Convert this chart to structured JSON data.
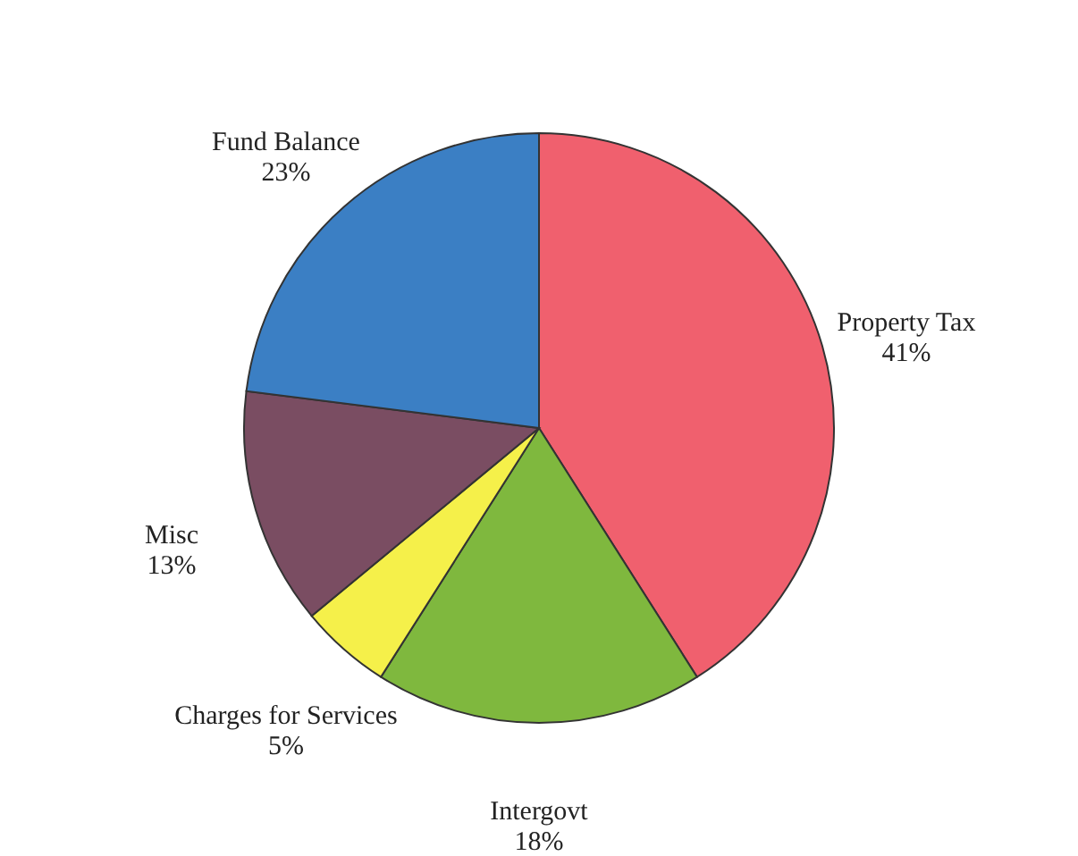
{
  "chart_data": {
    "type": "pie",
    "categories": [
      "Property Tax",
      "Intergovt",
      "Charges for Services",
      "Misc",
      "Fund Balance"
    ],
    "values": [
      41,
      18,
      5,
      13,
      23
    ],
    "value_labels": [
      "41%",
      "18%",
      "5%",
      "13%",
      "23%"
    ],
    "colors": [
      "#f0606e",
      "#7fb83e",
      "#f5f04a",
      "#7a4d62",
      "#3b7fc4"
    ],
    "legend": false
  }
}
